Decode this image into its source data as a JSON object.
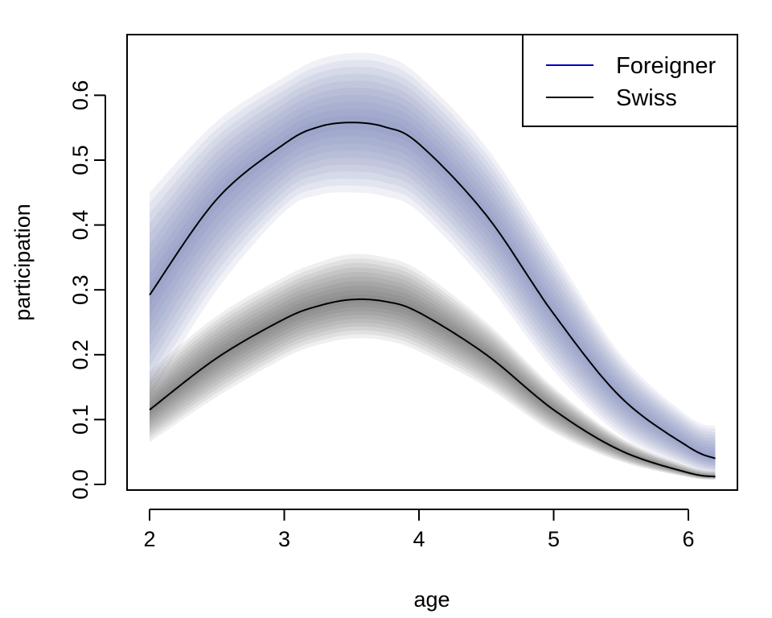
{
  "chart_data": {
    "type": "line",
    "title": "",
    "xlabel": "age",
    "ylabel": "participation",
    "xlim": [
      2,
      6.2
    ],
    "ylim": [
      0,
      0.6
    ],
    "x_ticks": [
      2,
      3,
      4,
      5,
      6
    ],
    "y_ticks": [
      0.0,
      0.1,
      0.2,
      0.3,
      0.4,
      0.5,
      0.6
    ],
    "y_tick_labels": [
      "0.0",
      "0.1",
      "0.2",
      "0.3",
      "0.4",
      "0.5",
      "0.6"
    ],
    "legend_position": "top-right",
    "grid": false,
    "x": [
      2.0,
      2.5,
      3.0,
      3.25,
      3.5,
      3.75,
      4.0,
      4.5,
      5.0,
      5.5,
      6.0,
      6.2
    ],
    "series": [
      {
        "name": "Foreigner",
        "legend_color": "#0000cc",
        "line_color": "#000000",
        "band_color": "#7a84b8",
        "values": [
          0.292,
          0.44,
          0.525,
          0.551,
          0.558,
          0.551,
          0.525,
          0.415,
          0.263,
          0.134,
          0.058,
          0.04
        ],
        "lower": [
          0.135,
          0.3,
          0.42,
          0.446,
          0.45,
          0.444,
          0.42,
          0.31,
          0.175,
          0.075,
          0.026,
          0.016
        ],
        "upper": [
          0.45,
          0.56,
          0.628,
          0.655,
          0.665,
          0.66,
          0.63,
          0.52,
          0.36,
          0.2,
          0.105,
          0.09
        ]
      },
      {
        "name": "Swiss",
        "legend_color": "#000000",
        "line_color": "#000000",
        "band_color": "#4a4a4a",
        "values": [
          0.115,
          0.195,
          0.255,
          0.275,
          0.285,
          0.282,
          0.265,
          0.2,
          0.115,
          0.052,
          0.018,
          0.012
        ],
        "lower": [
          0.065,
          0.135,
          0.195,
          0.215,
          0.225,
          0.222,
          0.205,
          0.15,
          0.08,
          0.035,
          0.011,
          0.007
        ],
        "upper": [
          0.175,
          0.26,
          0.32,
          0.342,
          0.355,
          0.35,
          0.33,
          0.25,
          0.15,
          0.072,
          0.028,
          0.02
        ]
      }
    ]
  }
}
